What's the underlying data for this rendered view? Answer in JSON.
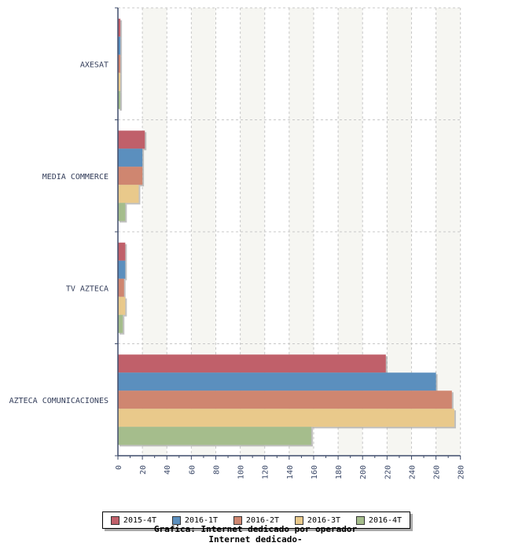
{
  "chart_data": {
    "type": "bar",
    "orientation": "horizontal",
    "title": "Grafica: Internet dedicado por operador",
    "subtitle": "Internet dedicado-",
    "categories": [
      "AXESAT",
      "MEDIA COMMERCE",
      "TV AZTECA",
      "AZTECA COMUNICACIONES"
    ],
    "series": [
      {
        "name": "2015-4T",
        "color": "#c0606a",
        "values": [
          2,
          22,
          6,
          219
        ]
      },
      {
        "name": "2016-1T",
        "color": "#5b8fbe",
        "values": [
          2,
          20,
          6,
          260
        ]
      },
      {
        "name": "2016-2T",
        "color": "#cf8670",
        "values": [
          2,
          20,
          5,
          273
        ]
      },
      {
        "name": "2016-3T",
        "color": "#e9c98b",
        "values": [
          2,
          17,
          6,
          275
        ]
      },
      {
        "name": "2016-4T",
        "color": "#a5bd8c",
        "values": [
          2,
          6,
          4,
          158
        ]
      }
    ],
    "xlim": [
      0,
      280
    ],
    "xticks": [
      "0",
      "20",
      "40",
      "60",
      "80",
      "100",
      "120",
      "140",
      "160",
      "180",
      "200",
      "220",
      "240",
      "260",
      "280"
    ],
    "grid": true,
    "legend_position": "bottom"
  }
}
